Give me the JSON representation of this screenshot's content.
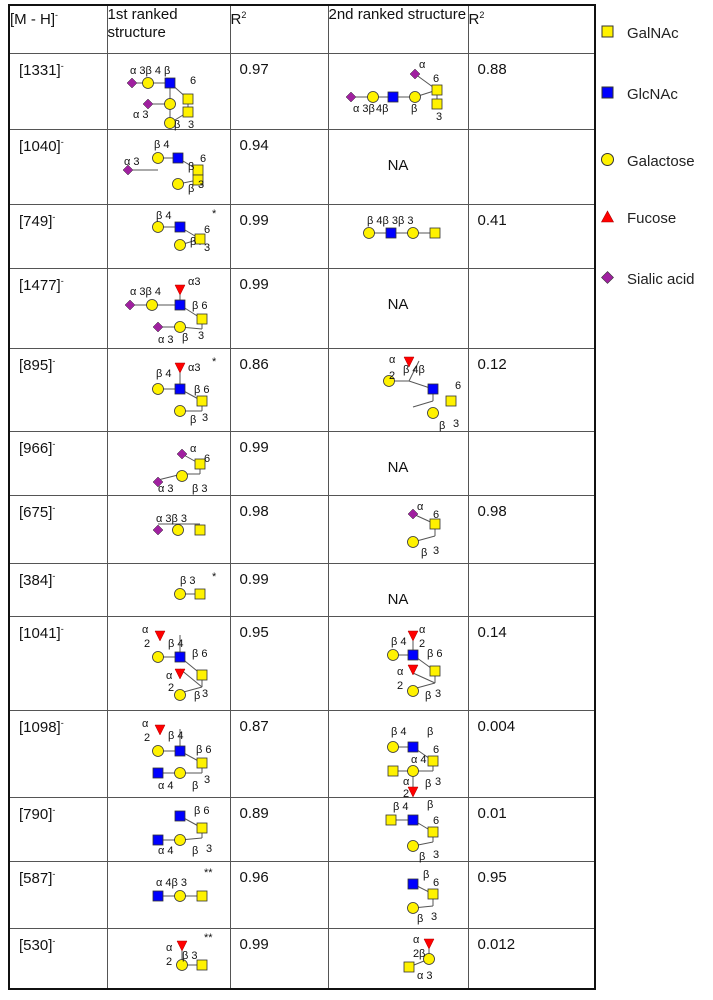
{
  "table": {
    "headers": {
      "ion": "[M - H]",
      "ion_sup": "-",
      "first": "1st ranked structure",
      "r2_first": "R",
      "r2_first_sup": "2",
      "second": "2nd ranked structure",
      "r2_second": "R",
      "r2_second_sup": "2"
    },
    "rows": [
      {
        "ion": "[1331]",
        "sup": "-",
        "r2_first": "0.97",
        "second_text": "",
        "r2_second": "0.88"
      },
      {
        "ion": "[1040]",
        "sup": "-",
        "r2_first": "0.94",
        "second_text": "NA",
        "r2_second": ""
      },
      {
        "ion": "[749]",
        "sup": "-",
        "r2_first": "0.99",
        "second_text": "",
        "r2_second": "0.41"
      },
      {
        "ion": "[1477]",
        "sup": "-",
        "r2_first": "0.99",
        "second_text": "NA",
        "r2_second": ""
      },
      {
        "ion": "[895]",
        "sup": "-",
        "r2_first": "0.86",
        "second_text": "",
        "r2_second": "0.12"
      },
      {
        "ion": "[966]",
        "sup": "-",
        "r2_first": "0.99",
        "second_text": "NA",
        "r2_second": ""
      },
      {
        "ion": "[675]",
        "sup": "-",
        "r2_first": "0.98",
        "second_text": "",
        "r2_second": "0.98"
      },
      {
        "ion": "[384]",
        "sup": "-",
        "r2_first": "0.99",
        "second_text": "NA",
        "r2_second": ""
      },
      {
        "ion": "[1041]",
        "sup": "-",
        "r2_first": "0.95",
        "second_text": "",
        "r2_second": "0.14"
      },
      {
        "ion": "[1098]",
        "sup": "-",
        "r2_first": "0.87",
        "second_text": "",
        "r2_second": "0.004"
      },
      {
        "ion": "[790]",
        "sup": "-",
        "r2_first": "0.89",
        "second_text": "",
        "r2_second": "0.01"
      },
      {
        "ion": "[587]",
        "sup": "-",
        "r2_first": "0.96",
        "second_text": "",
        "r2_second": "0.95"
      },
      {
        "ion": "[530]",
        "sup": "-",
        "r2_first": "0.99",
        "second_text": "",
        "r2_second": "0.012"
      }
    ]
  },
  "glycan_labels": {
    "r0a": [
      "α 3β 4",
      "α 3",
      "β",
      "β",
      "3",
      "6"
    ],
    "r0b": [
      "α",
      "α 3β",
      "4β",
      "β",
      "3",
      "6"
    ],
    "r1a": [
      "β 4",
      "α 3",
      "β",
      "β",
      "3",
      "6"
    ],
    "r2a": [
      "β 4",
      "*",
      "β",
      "6",
      "3"
    ],
    "r2b": [
      "β 4β 3β 3"
    ],
    "r3a": [
      "α 3β 4",
      "α3",
      "β 6",
      "α 3",
      "β",
      "3"
    ],
    "r4a": [
      "β 4",
      "*",
      "α3",
      "β 6",
      "β",
      "3"
    ],
    "r4b": [
      "α",
      "2",
      "β 4β",
      "6",
      "β",
      "3"
    ],
    "r5a": [
      "α",
      "6",
      "α 3",
      "β 3"
    ],
    "r6a": [
      "α 3β 3"
    ],
    "r6b": [
      "α",
      "6",
      "β",
      "3"
    ],
    "r7a": [
      "β 3",
      "*"
    ],
    "r8a": [
      "α",
      "2",
      "β 4",
      "β 6",
      "α",
      "2",
      "β",
      "3"
    ],
    "r8b": [
      "β 4",
      "α",
      "2",
      "β 6",
      "α",
      "2",
      "β",
      "3"
    ],
    "r9a": [
      "α",
      "2",
      "β 4",
      "β 6",
      "α 4",
      "β",
      "3"
    ],
    "r9b": [
      "β 4",
      "β",
      "6",
      "α 4",
      "β",
      "3",
      "α",
      "2"
    ],
    "r10a": [
      "β 6",
      "α 4",
      "β",
      "3"
    ],
    "r10b": [
      "β 4",
      "β",
      "6",
      "β",
      "3"
    ],
    "r11a": [
      "α 4β 3",
      "**"
    ],
    "r11b": [
      "β",
      "6",
      "β",
      "3"
    ],
    "r12a": [
      "**",
      "α",
      "2",
      "β 3"
    ],
    "r12b": [
      "α",
      "2",
      "β",
      "α 3"
    ]
  },
  "legend": {
    "items": [
      {
        "label": "GalNAc",
        "shape": "square",
        "color": "#FFF200"
      },
      {
        "label": "GlcNAc",
        "shape": "square",
        "color": "#0000FF"
      },
      {
        "label": "Galactose",
        "shape": "circle",
        "color": "#FFF200"
      },
      {
        "label": "Fucose",
        "shape": "triangle",
        "color": "#FF0000"
      },
      {
        "label": "Sialic acid",
        "shape": "diamond",
        "color": "#A020A0"
      }
    ]
  }
}
